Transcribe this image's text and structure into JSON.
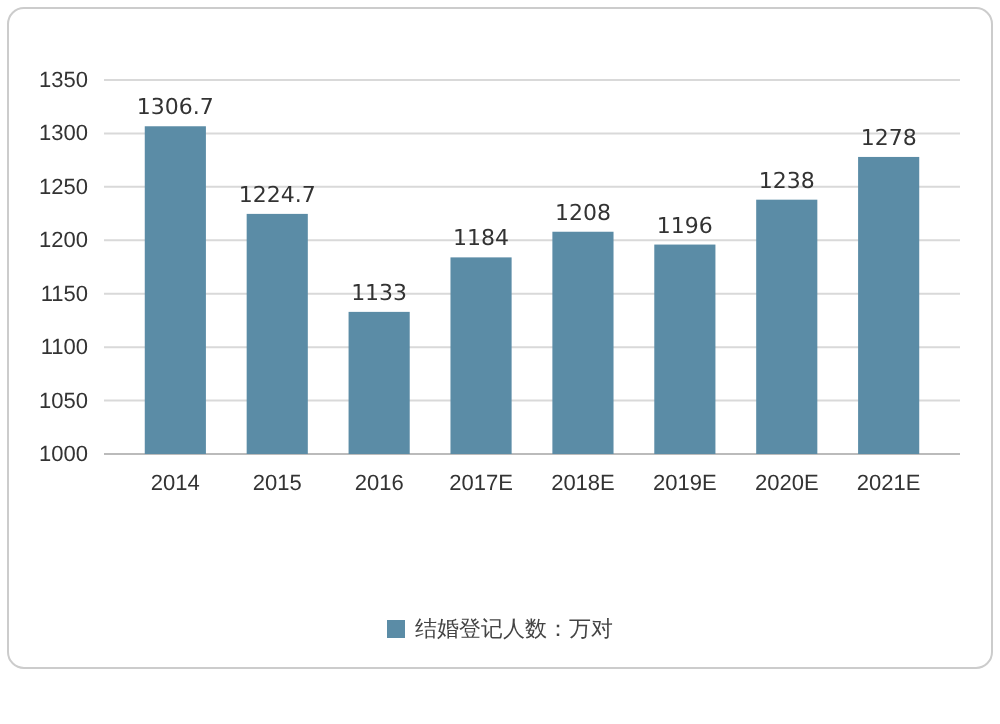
{
  "chart_data": {
    "type": "bar",
    "categories": [
      "2014",
      "2015",
      "2016",
      "2017E",
      "2018E",
      "2019E",
      "2020E",
      "2021E"
    ],
    "series": [
      {
        "name": "结婚登记人数：万对",
        "color": "#5b8ca6",
        "values": [
          1306.7,
          1224.7,
          1133,
          1184,
          1208,
          1196,
          1238,
          1278
        ]
      }
    ],
    "ylim": [
      1000,
      1350
    ],
    "yticks": [
      1000,
      1050,
      1100,
      1150,
      1200,
      1250,
      1300,
      1350
    ],
    "grid": "y",
    "data_labels": true,
    "legend": "bottom"
  }
}
